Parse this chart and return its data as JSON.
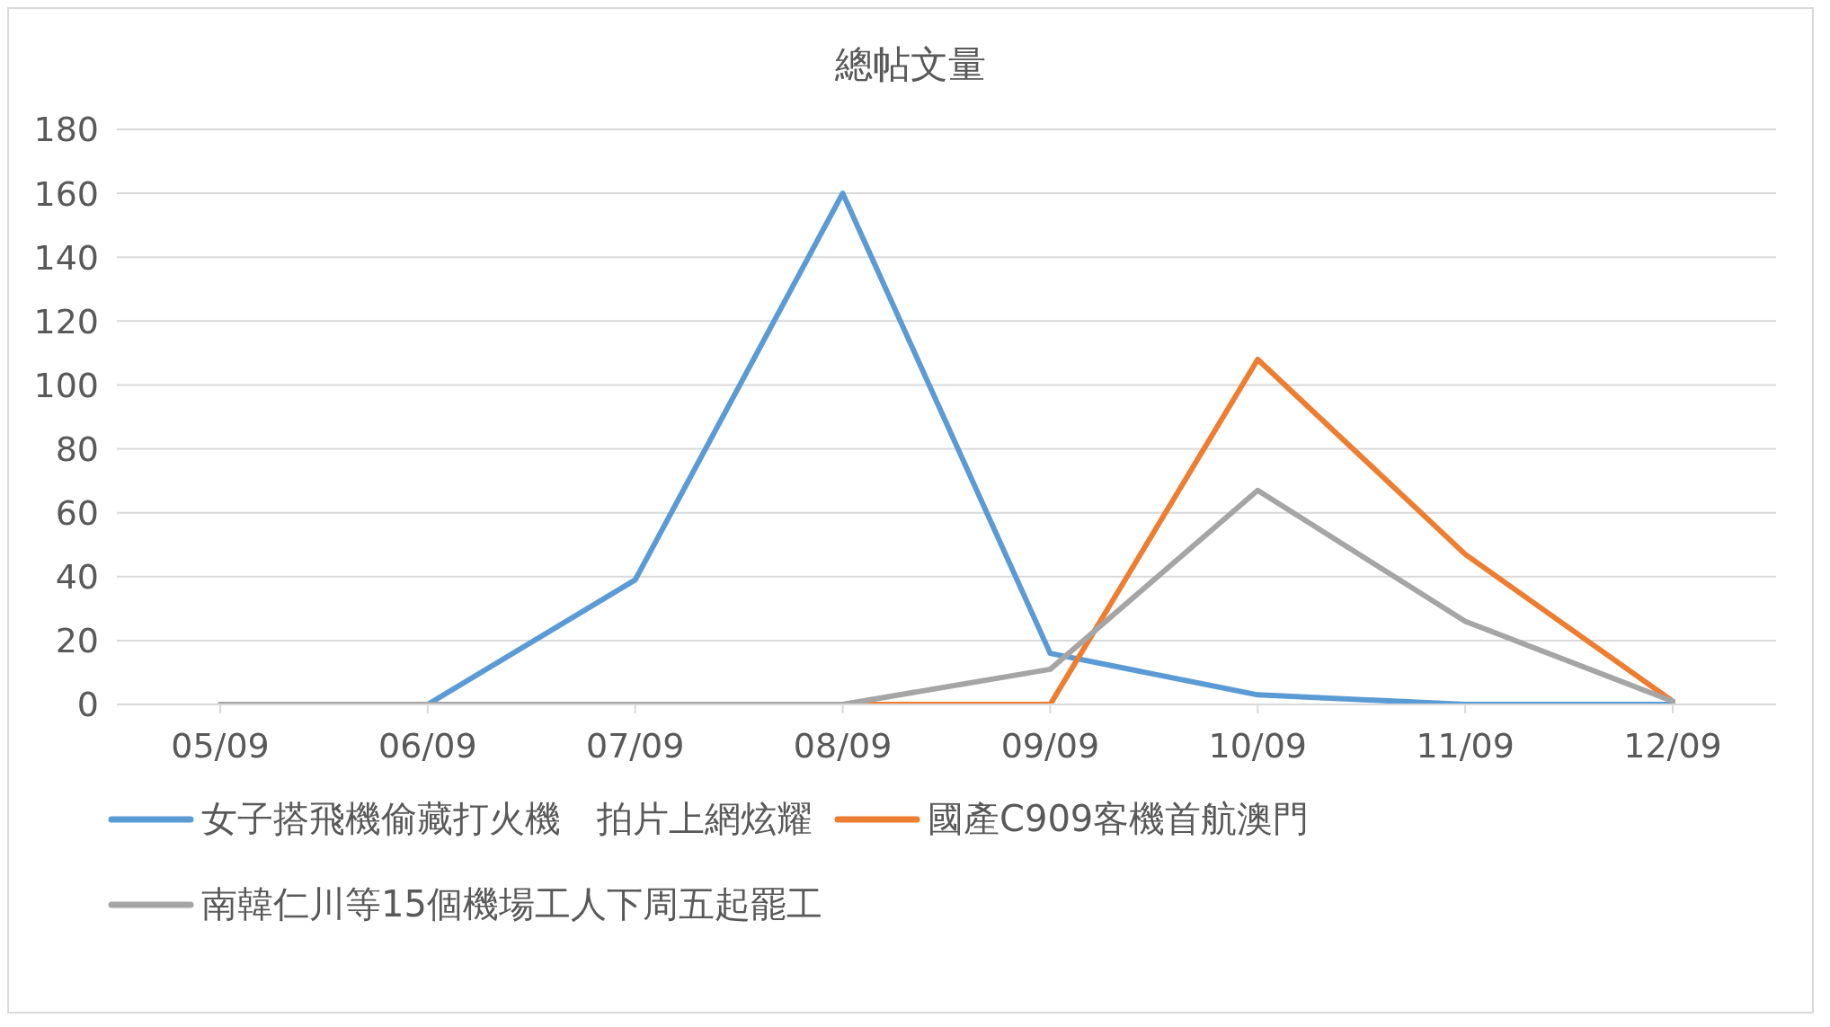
{
  "chart_data": {
    "type": "line",
    "title": "總帖文量",
    "categories": [
      "05/09",
      "06/09",
      "07/09",
      "08/09",
      "09/09",
      "10/09",
      "11/09",
      "12/09"
    ],
    "series": [
      {
        "name": "女子搭飛機偷藏打火機　拍片上網炫耀",
        "color": "#5b9bd5",
        "values": [
          null,
          0,
          39,
          160,
          16,
          3,
          0,
          0
        ]
      },
      {
        "name": "國產C909客機首航澳門",
        "color": "#ed7d31",
        "values": [
          null,
          null,
          null,
          0,
          0,
          108,
          47,
          1
        ]
      },
      {
        "name": "南韓仁川等15個機場工人下周五起罷工",
        "color": "#a5a5a5",
        "values": [
          0,
          0,
          0,
          0,
          11,
          67,
          26,
          1
        ]
      }
    ],
    "ylim": [
      0,
      180
    ],
    "yticks": [
      0,
      20,
      40,
      60,
      80,
      100,
      120,
      140,
      160,
      180
    ],
    "grid": "y",
    "legend": "bottom",
    "marker": "none",
    "line_style": "solid"
  }
}
